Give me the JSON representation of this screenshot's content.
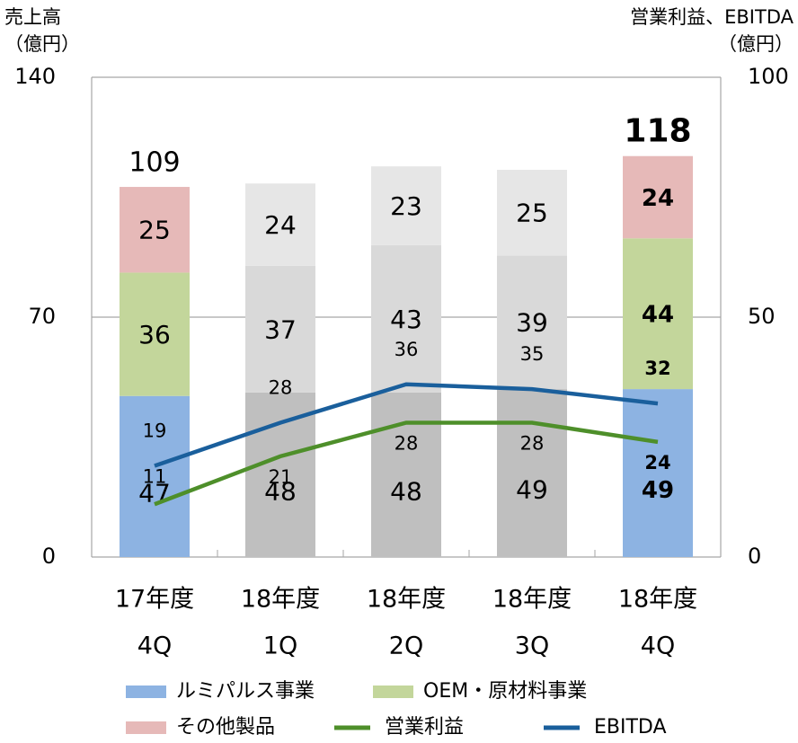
{
  "chart_data": {
    "type": "stacked-bar-line",
    "y_label": [
      "売上高",
      "（億円）"
    ],
    "y2_label": [
      "営業利益、EBITDA",
      "（億円）"
    ],
    "categories": [
      [
        "17年度",
        "4Q"
      ],
      [
        "18年度",
        "1Q"
      ],
      [
        "18年度",
        "2Q"
      ],
      [
        "18年度",
        "3Q"
      ],
      [
        "18年度",
        "4Q"
      ]
    ],
    "ylim": [
      0,
      140
    ],
    "yticks": [
      0,
      70,
      140
    ],
    "y2lim": [
      0,
      100
    ],
    "y2ticks": [
      0,
      50,
      100
    ],
    "grid": true,
    "series": [
      {
        "name": "ルミパルス事業",
        "color": "#8db3e2",
        "colors": [
          "#8db3e2",
          "#bfbfbf",
          "#bfbfbf",
          "#bfbfbf",
          "#8db3e2"
        ],
        "values": [
          47,
          48,
          48,
          49,
          49
        ]
      },
      {
        "name": "OEM・原材料事業",
        "color": "#c3d69b",
        "colors": [
          "#c3d69b",
          "#d9d9d9",
          "#d9d9d9",
          "#d9d9d9",
          "#c3d69b"
        ],
        "values": [
          36,
          37,
          43,
          39,
          44
        ]
      },
      {
        "name": "その他製品",
        "color": "#e6b9b8",
        "colors": [
          "#e6b9b8",
          "#e6e6e6",
          "#e6e6e6",
          "#e6e6e6",
          "#e6b9b8"
        ],
        "values": [
          25,
          24,
          23,
          25,
          24
        ]
      },
      {
        "name": "営業利益",
        "color": "#4e8f2a",
        "axis": "y2",
        "type": "line",
        "values": [
          11,
          21,
          28,
          28,
          24
        ]
      },
      {
        "name": "EBITDA",
        "color": "#1a5f9c",
        "axis": "y2",
        "type": "line",
        "values": [
          19,
          28,
          36,
          35,
          32
        ]
      }
    ],
    "totals": [
      109,
      null,
      null,
      null,
      118
    ],
    "highlight_color": "#e36c09"
  }
}
